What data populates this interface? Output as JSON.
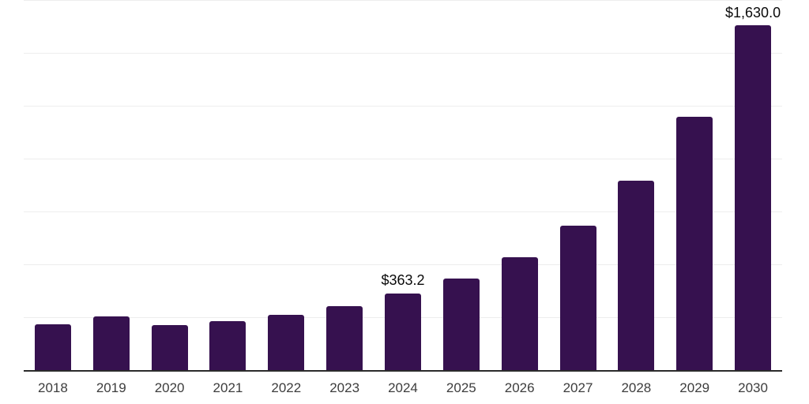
{
  "chart_data": {
    "type": "bar",
    "title": "",
    "xlabel": "",
    "ylabel": "",
    "categories": [
      "2018",
      "2019",
      "2020",
      "2021",
      "2022",
      "2023",
      "2024",
      "2025",
      "2026",
      "2027",
      "2028",
      "2029",
      "2030"
    ],
    "values": [
      218,
      253,
      211,
      232,
      262,
      303,
      363.2,
      432,
      534,
      684,
      897,
      1196,
      1630
    ],
    "value_labels": [
      "",
      "",
      "",
      "",
      "",
      "",
      "$363.2",
      "",
      "",
      "",
      "",
      "",
      "$1,630.0"
    ],
    "ylim": [
      0,
      1750
    ],
    "gridline_step": 250,
    "grid": "horizontal",
    "y_tick_labels_visible": false,
    "legend_position": "none",
    "colors": {
      "bar": "#36114F",
      "axis_line": "#2b2b2b",
      "gridline": "#ededed",
      "value_label": "#0a0a0a",
      "tick_label": "#3d3d3d",
      "background": "#ffffff"
    }
  }
}
